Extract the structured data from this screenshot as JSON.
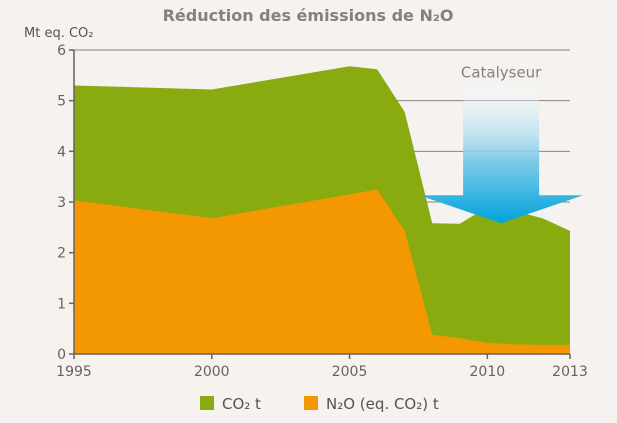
{
  "chart_data": {
    "type": "area",
    "title": "Réduction des émissions de N₂O",
    "ylabel": "Mt eq. CO₂",
    "xlabel": "",
    "xlim": [
      1995,
      2013
    ],
    "ylim": [
      0,
      6
    ],
    "x_ticks": [
      1995,
      2000,
      2005,
      2010,
      2013
    ],
    "y_ticks": [
      0,
      1,
      2,
      3,
      4,
      5,
      6
    ],
    "grid": true,
    "series": [
      {
        "name": "CO₂ t",
        "color": "#8aab0f",
        "points": [
          [
            1995,
            5.3
          ],
          [
            2000,
            5.22
          ],
          [
            2005,
            5.68
          ],
          [
            2006,
            5.62
          ],
          [
            2007,
            4.78
          ],
          [
            2008,
            2.58
          ],
          [
            2009,
            2.57
          ],
          [
            2010,
            2.9
          ],
          [
            2011,
            2.82
          ],
          [
            2012,
            2.68
          ],
          [
            2013,
            2.43
          ]
        ]
      },
      {
        "name": "N₂O (eq. CO₂) t",
        "color": "#f39800",
        "points": [
          [
            1995,
            3.03
          ],
          [
            2000,
            2.68
          ],
          [
            2005,
            3.15
          ],
          [
            2006,
            3.25
          ],
          [
            2007,
            2.43
          ],
          [
            2008,
            0.38
          ],
          [
            2009,
            0.31
          ],
          [
            2010,
            0.22
          ],
          [
            2011,
            0.19
          ],
          [
            2012,
            0.18
          ],
          [
            2013,
            0.18
          ]
        ]
      }
    ],
    "annotation": {
      "text": "Catalyseur",
      "x": 2010.5,
      "arrow_tip_y": 2.58,
      "arrow_top_y": 5.3
    },
    "legend_position": "bottom-center"
  }
}
